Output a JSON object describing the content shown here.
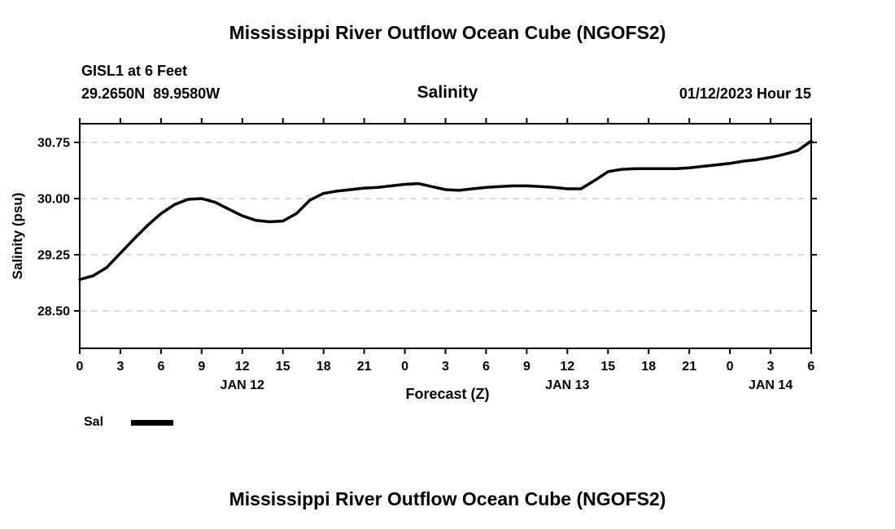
{
  "titles": {
    "top": "Mississippi River Outflow Ocean Cube (NGOFS2)",
    "bottom": "Mississippi River Outflow Ocean Cube (NGOFS2)"
  },
  "header": {
    "station": "GISL1 at 6 Feet",
    "coordinates": "29.2650N  89.9580W",
    "chart_title": "Salinity",
    "run_time": "01/12/2023 Hour 15"
  },
  "axes": {
    "y_label": "Salinity (psu)",
    "x_label": "Forecast (Z)"
  },
  "legend": {
    "series_label": "Sal",
    "swatch_color": "#000000"
  },
  "chart_data": {
    "type": "line",
    "title": "Salinity",
    "xlabel": "Forecast (Z)",
    "ylabel": "Salinity (psu)",
    "xlim": [
      0,
      54
    ],
    "ylim": [
      28.0,
      31.0
    ],
    "xticks": [
      0,
      3,
      6,
      9,
      12,
      15,
      18,
      21,
      24,
      27,
      30,
      33,
      36,
      39,
      42,
      45,
      48,
      51,
      54
    ],
    "xtick_labels": [
      "0",
      "3",
      "6",
      "9",
      "12",
      "15",
      "18",
      "21",
      "0",
      "3",
      "6",
      "9",
      "12",
      "15",
      "18",
      "21",
      "0",
      "3",
      "6"
    ],
    "ytick_values": [
      28.5,
      29.25,
      30.0,
      30.75
    ],
    "ytick_labels": [
      "28.50",
      "29.25",
      "30.00",
      "30.75"
    ],
    "date_labels": [
      {
        "label": "JAN 12",
        "hour": 12
      },
      {
        "label": "JAN 13",
        "hour": 36
      },
      {
        "label": "JAN 14",
        "hour": 51
      }
    ],
    "grid": {
      "horizontal": true,
      "vertical": false,
      "style": "dashed",
      "color": "#b5b5b5"
    },
    "legend_position": "bottom-left",
    "series": [
      {
        "name": "Sal",
        "color": "#000000",
        "line_width": 3.5,
        "x": [
          0,
          1,
          2,
          3,
          4,
          5,
          6,
          7,
          8,
          9,
          10,
          11,
          12,
          13,
          14,
          15,
          16,
          17,
          18,
          19,
          20,
          21,
          22,
          23,
          24,
          25,
          26,
          27,
          28,
          29,
          30,
          31,
          32,
          33,
          34,
          35,
          36,
          37,
          38,
          39,
          40,
          41,
          42,
          43,
          44,
          45,
          46,
          47,
          48,
          49,
          50,
          51,
          52,
          53,
          54
        ],
        "y": [
          28.92,
          28.97,
          29.08,
          29.27,
          29.46,
          29.64,
          29.8,
          29.92,
          29.99,
          30.0,
          29.95,
          29.86,
          29.77,
          29.71,
          29.69,
          29.7,
          29.8,
          29.98,
          30.07,
          30.1,
          30.12,
          30.14,
          30.15,
          30.17,
          30.19,
          30.2,
          30.16,
          30.12,
          30.11,
          30.13,
          30.15,
          30.16,
          30.17,
          30.17,
          30.16,
          30.15,
          30.13,
          30.13,
          30.24,
          30.36,
          30.39,
          30.4,
          30.4,
          30.4,
          30.4,
          30.41,
          30.43,
          30.45,
          30.47,
          30.5,
          30.52,
          30.55,
          30.59,
          30.64,
          30.77
        ]
      }
    ]
  }
}
